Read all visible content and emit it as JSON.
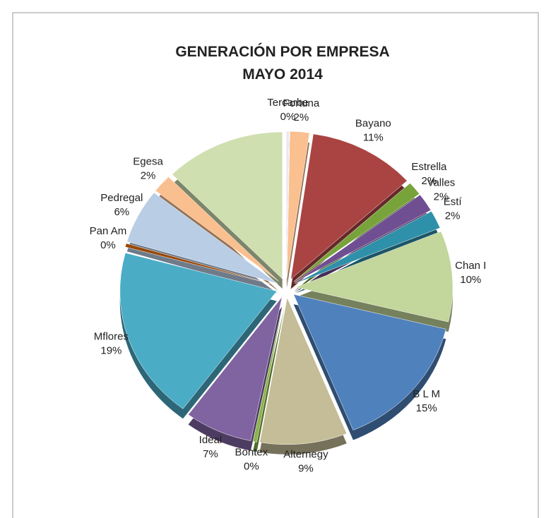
{
  "chart_data": {
    "type": "pie",
    "title": "GENERACIÓN POR EMPRESA",
    "subtitle": "MAYO 2014",
    "categories": [
      "Tercarbe",
      "Fortuna",
      "Bayano",
      "Estrella",
      "Valles",
      "Estí",
      "Chan I",
      "B L M",
      "Alternegy",
      "Bontex",
      "Ideal",
      "Mflores",
      "Pan Am",
      "Pedregal",
      "Egesa",
      null
    ],
    "values": [
      0.3,
      2,
      11,
      1.5,
      2,
      2,
      10,
      15,
      9,
      0.4,
      7,
      19,
      0.4,
      6,
      2,
      12.4
    ],
    "value_labels": [
      "0%",
      "2%",
      "11%",
      "2%",
      "2%",
      "2%",
      "10%",
      "15%",
      "9%",
      "0%",
      "7%",
      "19%",
      "0%",
      "6%",
      "2%",
      null
    ],
    "colors": [
      "#e8e8f0",
      "#fac090",
      "#a94442",
      "#77a33a",
      "#6f4f92",
      "#2f90aa",
      "#c3d69b",
      "#4f81bd",
      "#c4bd97",
      "#8bb34a",
      "#8064a2",
      "#4bacc6",
      "#984807",
      "#b9cde5",
      "#fabf8f",
      "#cfdfb0"
    ]
  }
}
